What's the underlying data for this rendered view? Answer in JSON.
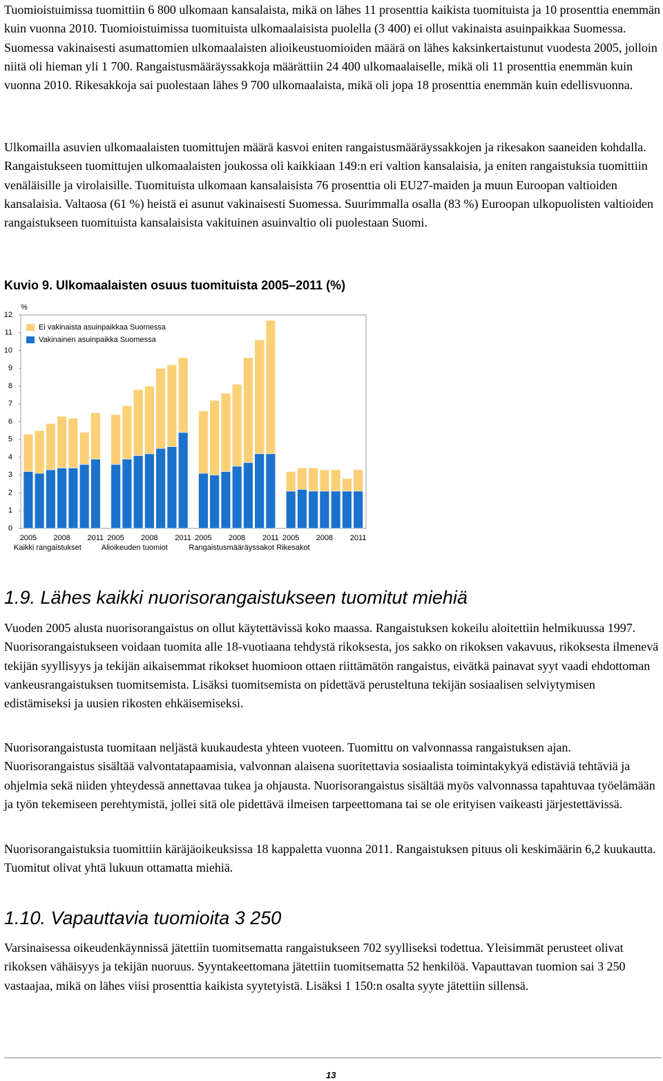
{
  "intro": {
    "paragraphs": [
      "Tuomioistuimissa tuomittiin 6 800 ulkomaan kansalaista, mikä on lähes 11 prosenttia kaikista tuomituista ja 10 prosenttia enemmän kuin vuonna 2010. Tuomioistuimissa tuomituista ulkomaalaisista puolella (3 400) ei ollut vakinaista asuinpaikkaa Suomessa. Suomessa vakinaisesti asumattomien ulkomaalaisten alioikeustuomioiden määrä on lähes kaksinkertaistunut vuodesta 2005, jolloin niitä oli hieman yli 1 700. Rangaistusmääräyssakkoja määrättiin 24 400 ulkomaalaiselle, mikä oli 11 prosenttia enemmän kuin vuonna 2010. Rikesakkoja sai puolestaan lähes 9 700 ulkomaalaista, mikä oli jopa 18 prosenttia enemmän kuin edellisvuonna.",
      "Ulkomailla asuvien ulkomaalaisten tuomittujen määrä kasvoi eniten rangaistusmääräyssakkojen ja rikesakon saaneiden kohdalla. Rangaistukseen tuomittujen ulkomaalaisten joukossa oli kaikkiaan 149:n eri valtion kansalaisia, ja eniten rangaistuksia tuomittiin venäläisille ja virolaisille. Tuomituista ulkomaan kansalaisista 76 prosenttia oli EU27-maiden ja muun Euroopan valtioiden kansalaisia. Valtaosa (61 %) heistä ei asunut vakinaisesti Suomessa. Suurimmalla osalla (83 %) Euroopan ulkopuolisten valtioiden rangaistukseen tuomituista kansalaisista vakituinen asuinvaltio oli puolestaan Suomi."
    ]
  },
  "chart_data": {
    "type": "stacked-bar",
    "title": "Kuvio 9. Ulkomaalaisten osuus tuomituista 2005–2011 (%)",
    "y_label": "%",
    "groups": [
      "Kaikki rangaistukset",
      "Alioikeuden tuomiot",
      "Rangaistusmääräyssakot",
      "Rikesakot"
    ],
    "categories": [
      "2005",
      null,
      null,
      "2008",
      null,
      null,
      "2011",
      "2005",
      null,
      null,
      "2008",
      null,
      null,
      "2011",
      "2005",
      null,
      null,
      "2008",
      null,
      null,
      "2011",
      "2005",
      null,
      null,
      "2008",
      null,
      null,
      "2011"
    ],
    "series": [
      {
        "name": "Vakinainen asuinpaikka Suomessa",
        "color": "#1b72cc",
        "values": [
          3.2,
          3.1,
          3.3,
          3.4,
          3.4,
          3.6,
          3.9,
          3.6,
          3.9,
          4.1,
          4.2,
          4.5,
          4.6,
          5.4,
          3.1,
          3.0,
          3.2,
          3.5,
          3.7,
          4.2,
          4.2,
          2.1,
          2.2,
          2.1,
          2.1,
          2.1,
          2.1,
          2.1
        ]
      },
      {
        "name": "Ei vakinaista asuinpaikkaa Suomessa",
        "color": "#fbcf75",
        "values": [
          2.1,
          2.4,
          2.6,
          2.9,
          2.8,
          1.8,
          2.6,
          2.8,
          3.0,
          3.7,
          3.8,
          4.5,
          4.6,
          4.2,
          3.5,
          4.2,
          4.4,
          4.6,
          5.9,
          6.4,
          7.5,
          1.1,
          1.2,
          1.3,
          1.2,
          1.2,
          0.7,
          1.2
        ]
      }
    ],
    "ylim": [
      0,
      12
    ],
    "yticks": [
      0,
      1,
      2,
      3,
      4,
      5,
      6,
      7,
      8,
      9,
      10,
      11,
      12
    ],
    "legend": "top-left"
  },
  "sections": [
    {
      "heading": "1.9. Lähes kaikki nuorisorangaistukseen tuomitut miehiä",
      "paragraphs": [
        "Vuoden 2005 alusta nuorisorangaistus on ollut käytettävissä koko maassa. Rangaistuksen kokeilu aloitettiin helmikuussa 1997. Nuorisorangaistukseen voidaan tuomita alle 18-vuotiaana tehdystä rikoksesta, jos sakko on rikoksen vakavuus, rikoksesta ilmenevä tekijän syyllisyys ja tekijän aikaisemmat rikokset huomioon ottaen riittämätön rangaistus, eivätkä painavat syyt vaadi ehdottoman vankeusrangaistuksen tuomitsemista. Lisäksi tuomitsemista on pidettävä perusteltuna tekijän sosiaalisen selviytymisen edistämiseksi ja uusien rikosten ehkäisemiseksi.",
        "Nuorisorangaistusta tuomitaan neljästä kuukaudesta yhteen vuoteen. Tuomittu on valvonnassa rangaistuksen ajan. Nuorisorangaistus sisältää valvontatapaamisia, valvonnan alaisena suoritettavia sosiaalista toimintakykyä edistäviä tehtäviä ja ohjelmia sekä niiden yhteydessä annettavaa tukea ja ohjausta. Nuorisorangaistus sisältää myös valvonnassa tapahtuvaa työelämään ja työn tekemiseen perehtymistä, jollei sitä ole pidettävä ilmeisen tarpeettomana tai se ole erityisen vaikeasti järjestettävissä.",
        "Nuorisorangaistuksia tuomittiin käräjäoikeuksissa 18 kappaletta vuonna 2011. Rangaistuksen pituus oli keskimäärin 6,2 kuukautta. Tuomitut olivat yhtä lukuun ottamatta miehiä."
      ]
    },
    {
      "heading": "1.10. Vapauttavia tuomioita 3 250",
      "paragraphs": [
        "Varsinaisessa oikeudenkäynnissä jätettiin tuomitsematta rangaistukseen 702 syylliseksi todettua. Yleisimmät perusteet olivat rikoksen vähäisyys ja tekijän nuoruus. Syyntakeettomana jätettiin tuomitsematta 52 henkilöä. Vapauttavan tuomion sai 3 250 vastaajaa, mikä on lähes viisi prosenttia kaikista syytetyistä. Lisäksi 1 150:n osalta syyte jätettiin sillensä."
      ]
    }
  ],
  "page_number": "13"
}
